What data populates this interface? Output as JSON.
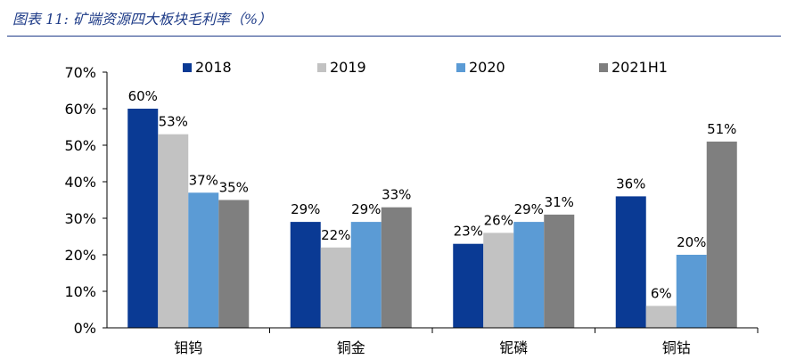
{
  "figure": {
    "title": "图表 11:  矿端资源四大板块毛利率（%）"
  },
  "chart_data": {
    "type": "bar",
    "categories": [
      "钼钨",
      "铜金",
      "铌磷",
      "铜钴"
    ],
    "series": [
      {
        "name": "2018",
        "color": "#0a3a94",
        "values": [
          60,
          29,
          23,
          36
        ],
        "labels": [
          "60%",
          "29%",
          "23%",
          "36%"
        ]
      },
      {
        "name": "2019",
        "color": "#c2c2c2",
        "values": [
          53,
          22,
          26,
          6
        ],
        "labels": [
          "53%",
          "22%",
          "26%",
          "6%"
        ]
      },
      {
        "name": "2020",
        "color": "#5b9bd5",
        "values": [
          37,
          29,
          29,
          20
        ],
        "labels": [
          "37%",
          "29%",
          "29%",
          "20%"
        ]
      },
      {
        "name": "2021H1",
        "color": "#7f7f7f",
        "values": [
          35,
          33,
          31,
          51
        ],
        "labels": [
          "35%",
          "33%",
          "31%",
          "51%"
        ]
      }
    ],
    "yticks": [
      "0%",
      "10%",
      "20%",
      "30%",
      "40%",
      "50%",
      "60%",
      "70%"
    ],
    "ylim": [
      0,
      70
    ],
    "legend_position": "top",
    "grid": false
  }
}
